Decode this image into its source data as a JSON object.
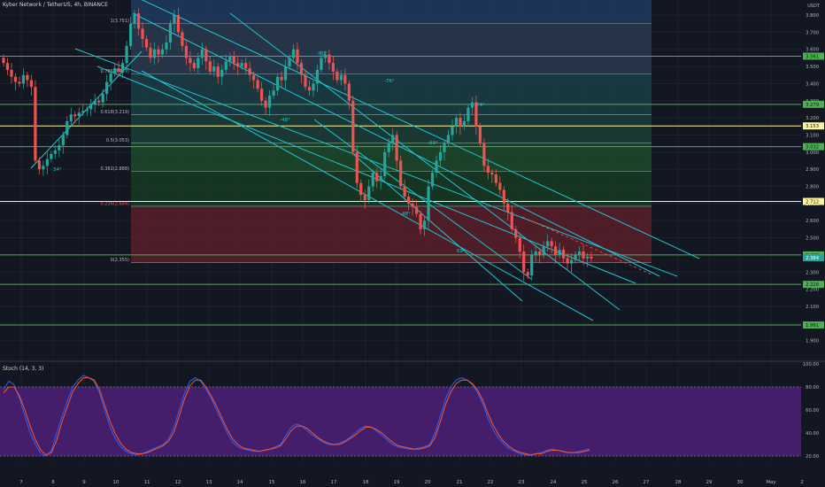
{
  "header": {
    "title": "Kyber Network / TetherUS, 4h, BINANCE",
    "currency": "USDT"
  },
  "oscillator": {
    "label": "Stoch (14, 3, 3)",
    "ticks": [
      "100.00",
      "80.00",
      "60.00",
      "40.00",
      "20.00"
    ]
  },
  "colors": {
    "background": "#131722",
    "up": "#26a69a",
    "down": "#ef5350",
    "channel": "#1fc7d4",
    "level_green": "#4caf50",
    "level_yellow": "#fff59d",
    "osc_fill": "#4a1f73",
    "k_line": "#2962ff",
    "d_line": "#ff5722"
  },
  "chart_data": [
    {
      "type": "candlestick",
      "title": "Kyber Network / TetherUS, 4h, BINANCE",
      "x_ticks": [
        "7",
        "8",
        "9",
        "10",
        "11",
        "12",
        "13",
        "14",
        "15",
        "16",
        "17",
        "18",
        "19",
        "20",
        "21",
        "22",
        "23",
        "24",
        "25",
        "26",
        "27",
        "28",
        "29",
        "30",
        "May",
        "2"
      ],
      "y_ticks": [
        "3.800",
        "3.700",
        "3.600",
        "3.500",
        "3.400",
        "3.300",
        "3.200",
        "3.100",
        "3.000",
        "2.900",
        "2.800",
        "2.700",
        "2.600",
        "2.500",
        "2.400",
        "2.300",
        "2.200",
        "2.100",
        "2.000",
        "1.900"
      ],
      "ylim": [
        1.86,
        3.98
      ],
      "last_price": "2.384",
      "horizontal_levels": [
        {
          "value": 3.56,
          "label": "3.561",
          "color": "#4caf50"
        },
        {
          "value": 3.279,
          "label": "3.279",
          "color": "#4caf50"
        },
        {
          "value": 3.153,
          "label": "3.153",
          "color": "#fff59d"
        },
        {
          "value": 3.032,
          "label": "3.032",
          "color": "#4caf50"
        },
        {
          "value": 2.712,
          "label": "2.712",
          "color": "#fff59d"
        },
        {
          "value": 2.4,
          "label": "2.400",
          "color": "#4caf50"
        },
        {
          "value": 2.228,
          "label": "2.228",
          "color": "#4caf50"
        },
        {
          "value": 1.991,
          "label": "1.991",
          "color": "#4caf50"
        }
      ],
      "fib_levels": [
        {
          "label": "1(3.751)",
          "value": 3.751
        },
        {
          "label": "0.786(3.457)",
          "value": 3.457
        },
        {
          "label": "0.618(3.219)",
          "value": 3.219
        },
        {
          "label": "0.5(3.053)",
          "value": 3.053
        },
        {
          "label": "0.382(2.888)",
          "value": 2.888
        },
        {
          "label": "0.236(2.684)",
          "value": 2.684
        },
        {
          "label": "0(2.355)",
          "value": 2.355
        }
      ],
      "angle_labels": [
        "34°",
        "-60°",
        "-76°",
        "-48°",
        "-74°",
        "-69°",
        "69°",
        "-48°"
      ],
      "closes": [
        3.52,
        3.48,
        3.44,
        3.41,
        3.4,
        3.45,
        3.42,
        3.38,
        2.95,
        2.9,
        2.92,
        2.96,
        2.99,
        3.01,
        3.04,
        3.1,
        3.18,
        3.22,
        3.21,
        3.23,
        3.24,
        3.25,
        3.28,
        3.3,
        3.29,
        3.34,
        3.41,
        3.46,
        3.49,
        3.47,
        3.52,
        3.62,
        3.75,
        3.81,
        3.72,
        3.66,
        3.61,
        3.55,
        3.6,
        3.57,
        3.6,
        3.64,
        3.75,
        3.8,
        3.7,
        3.62,
        3.55,
        3.52,
        3.49,
        3.55,
        3.6,
        3.53,
        3.47,
        3.5,
        3.44,
        3.48,
        3.53,
        3.56,
        3.52,
        3.5,
        3.52,
        3.49,
        3.45,
        3.42,
        3.37,
        3.3,
        3.26,
        3.33,
        3.36,
        3.44,
        3.42,
        3.5,
        3.55,
        3.6,
        3.52,
        3.45,
        3.38,
        3.36,
        3.4,
        3.48,
        3.55,
        3.57,
        3.52,
        3.47,
        3.42,
        3.45,
        3.4,
        3.3,
        3.0,
        2.82,
        2.75,
        2.72,
        2.8,
        2.88,
        2.83,
        2.86,
        3.0,
        3.05,
        3.1,
        2.95,
        2.8,
        2.74,
        2.7,
        2.68,
        2.64,
        2.55,
        2.6,
        2.8,
        2.88,
        2.95,
        3.0,
        3.05,
        3.1,
        3.15,
        3.2,
        3.15,
        3.18,
        3.26,
        3.29,
        3.15,
        3.05,
        2.92,
        2.88,
        2.87,
        2.82,
        2.78,
        2.7,
        2.65,
        2.55,
        2.5,
        2.42,
        2.3,
        2.28,
        2.4,
        2.42,
        2.4,
        2.45,
        2.48,
        2.45,
        2.4,
        2.43,
        2.38,
        2.35,
        2.37,
        2.4,
        2.42,
        2.38,
        2.39,
        2.38
      ]
    },
    {
      "type": "line",
      "title": "Stoch (14, 3, 3)",
      "ylim": [
        14,
        100
      ],
      "band": [
        20,
        80
      ],
      "series": [
        {
          "name": "%K",
          "values": [
            78,
            85,
            82,
            70,
            55,
            40,
            30,
            22,
            20,
            25,
            40,
            55,
            68,
            80,
            86,
            90,
            88,
            85,
            75,
            60,
            45,
            35,
            28,
            24,
            22,
            21,
            22,
            24,
            26,
            28,
            30,
            35,
            45,
            60,
            75,
            85,
            88,
            85,
            78,
            70,
            60,
            50,
            40,
            32,
            28,
            26,
            25,
            24,
            24,
            25,
            26,
            28,
            30,
            38,
            45,
            48,
            46,
            42,
            38,
            35,
            32,
            30,
            30,
            31,
            33,
            36,
            40,
            44,
            46,
            45,
            42,
            38,
            34,
            30,
            28,
            27,
            26,
            26,
            27,
            28,
            30,
            40,
            55,
            70,
            80,
            86,
            88,
            86,
            82,
            75,
            65,
            52,
            42,
            35,
            30,
            26,
            24,
            22,
            21,
            21,
            22,
            23,
            25,
            26,
            25,
            24,
            23,
            23,
            24,
            25,
            26
          ]
        },
        {
          "name": "%D",
          "values": [
            75,
            80,
            80,
            72,
            60,
            46,
            34,
            25,
            21,
            23,
            34,
            50,
            63,
            76,
            83,
            88,
            88,
            86,
            78,
            64,
            50,
            39,
            31,
            26,
            23,
            22,
            22,
            23,
            25,
            27,
            29,
            33,
            41,
            55,
            70,
            81,
            86,
            86,
            80,
            72,
            63,
            53,
            43,
            35,
            30,
            27,
            26,
            25,
            24,
            25,
            26,
            27,
            29,
            35,
            42,
            46,
            46,
            44,
            40,
            36,
            33,
            31,
            30,
            30,
            32,
            35,
            38,
            42,
            45,
            45,
            43,
            40,
            36,
            32,
            29,
            28,
            27,
            26,
            26,
            27,
            29,
            36,
            50,
            65,
            76,
            83,
            86,
            86,
            83,
            77,
            68,
            56,
            46,
            38,
            32,
            28,
            25,
            23,
            22,
            21,
            22,
            22,
            24,
            25,
            25,
            24,
            23,
            23,
            23,
            24,
            25
          ]
        }
      ]
    }
  ]
}
